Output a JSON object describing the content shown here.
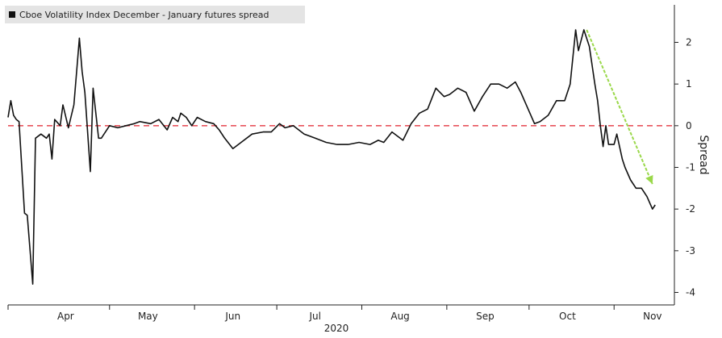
{
  "chart_data": {
    "type": "line",
    "legend": "Cboe Volatility Index December - January futures spread",
    "ylabel": "Spread",
    "xlabel": "2020",
    "ylim": [
      -4.3,
      2.9
    ],
    "yticks": [
      2,
      1,
      0,
      -1,
      -2,
      -3,
      -4
    ],
    "ytick_labels": [
      "2",
      "1",
      "0",
      "-1",
      "-2",
      "-3",
      "-4"
    ],
    "xlim": [
      "2020-03-25",
      "2020-11-23"
    ],
    "month_ticks": [
      "2020-03-25",
      "2020-05-01",
      "2020-06-01",
      "2020-07-01",
      "2020-08-01",
      "2020-09-01",
      "2020-10-01",
      "2020-11-01"
    ],
    "month_labels": [
      {
        "label": "Apr",
        "date": "2020-04-15"
      },
      {
        "label": "May",
        "date": "2020-05-15"
      },
      {
        "label": "Jun",
        "date": "2020-06-15"
      },
      {
        "label": "Jul",
        "date": "2020-07-15"
      },
      {
        "label": "Aug",
        "date": "2020-08-15"
      },
      {
        "label": "Sep",
        "date": "2020-09-15"
      },
      {
        "label": "Oct",
        "date": "2020-10-15"
      },
      {
        "label": "Nov",
        "date": "2020-11-15"
      }
    ],
    "reference_line": {
      "y": 0,
      "color": "#e8555d",
      "style": "dashed"
    },
    "trend_arrow": {
      "color": "#9ad84a",
      "from": {
        "x": "2020-10-22",
        "y": 2.3
      },
      "to": {
        "x": "2020-11-15",
        "y": -1.4
      }
    },
    "grid": false,
    "legend_position": "top-left",
    "series": [
      {
        "name": "Cboe Volatility Index December - January futures spread",
        "color": "#111111",
        "points": [
          [
            "2020-03-25",
            0.2
          ],
          [
            "2020-03-26",
            0.6
          ],
          [
            "2020-03-27",
            0.25
          ],
          [
            "2020-03-28",
            0.15
          ],
          [
            "2020-03-29",
            0.1
          ],
          [
            "2020-03-30",
            -1.0
          ],
          [
            "2020-03-31",
            -2.1
          ],
          [
            "2020-04-01",
            -2.15
          ],
          [
            "2020-04-03",
            -3.8
          ],
          [
            "2020-04-04",
            -0.3
          ],
          [
            "2020-04-06",
            -0.2
          ],
          [
            "2020-04-08",
            -0.3
          ],
          [
            "2020-04-09",
            -0.2
          ],
          [
            "2020-04-10",
            -0.8
          ],
          [
            "2020-04-11",
            0.15
          ],
          [
            "2020-04-13",
            0.0
          ],
          [
            "2020-04-14",
            0.5
          ],
          [
            "2020-04-16",
            -0.05
          ],
          [
            "2020-04-18",
            0.5
          ],
          [
            "2020-04-20",
            2.1
          ],
          [
            "2020-04-21",
            1.3
          ],
          [
            "2020-04-22",
            0.8
          ],
          [
            "2020-04-24",
            -1.1
          ],
          [
            "2020-04-25",
            0.9
          ],
          [
            "2020-04-27",
            -0.3
          ],
          [
            "2020-04-28",
            -0.3
          ],
          [
            "2020-05-01",
            0.0
          ],
          [
            "2020-05-04",
            -0.05
          ],
          [
            "2020-05-07",
            0.0
          ],
          [
            "2020-05-10",
            0.05
          ],
          [
            "2020-05-12",
            0.1
          ],
          [
            "2020-05-16",
            0.05
          ],
          [
            "2020-05-19",
            0.15
          ],
          [
            "2020-05-22",
            -0.1
          ],
          [
            "2020-05-24",
            0.2
          ],
          [
            "2020-05-26",
            0.1
          ],
          [
            "2020-05-27",
            0.3
          ],
          [
            "2020-05-29",
            0.2
          ],
          [
            "2020-05-31",
            0.0
          ],
          [
            "2020-06-02",
            0.2
          ],
          [
            "2020-06-05",
            0.1
          ],
          [
            "2020-06-08",
            0.05
          ],
          [
            "2020-06-10",
            -0.1
          ],
          [
            "2020-06-12",
            -0.3
          ],
          [
            "2020-06-15",
            -0.55
          ],
          [
            "2020-06-18",
            -0.4
          ],
          [
            "2020-06-22",
            -0.2
          ],
          [
            "2020-06-26",
            -0.15
          ],
          [
            "2020-06-29",
            -0.15
          ],
          [
            "2020-07-02",
            0.05
          ],
          [
            "2020-07-04",
            -0.05
          ],
          [
            "2020-07-07",
            0.0
          ],
          [
            "2020-07-11",
            -0.2
          ],
          [
            "2020-07-15",
            -0.3
          ],
          [
            "2020-07-19",
            -0.4
          ],
          [
            "2020-07-23",
            -0.45
          ],
          [
            "2020-07-27",
            -0.45
          ],
          [
            "2020-07-31",
            -0.4
          ],
          [
            "2020-08-04",
            -0.45
          ],
          [
            "2020-08-07",
            -0.35
          ],
          [
            "2020-08-09",
            -0.4
          ],
          [
            "2020-08-12",
            -0.15
          ],
          [
            "2020-08-16",
            -0.35
          ],
          [
            "2020-08-19",
            0.05
          ],
          [
            "2020-08-22",
            0.3
          ],
          [
            "2020-08-25",
            0.4
          ],
          [
            "2020-08-28",
            0.9
          ],
          [
            "2020-08-31",
            0.7
          ],
          [
            "2020-09-02",
            0.75
          ],
          [
            "2020-09-05",
            0.9
          ],
          [
            "2020-09-08",
            0.8
          ],
          [
            "2020-09-11",
            0.35
          ],
          [
            "2020-09-14",
            0.7
          ],
          [
            "2020-09-17",
            1.0
          ],
          [
            "2020-09-20",
            1.0
          ],
          [
            "2020-09-23",
            0.9
          ],
          [
            "2020-09-26",
            1.05
          ],
          [
            "2020-09-28",
            0.8
          ],
          [
            "2020-10-01",
            0.35
          ],
          [
            "2020-10-03",
            0.05
          ],
          [
            "2020-10-05",
            0.1
          ],
          [
            "2020-10-08",
            0.25
          ],
          [
            "2020-10-11",
            0.6
          ],
          [
            "2020-10-14",
            0.6
          ],
          [
            "2020-10-16",
            1.0
          ],
          [
            "2020-10-18",
            2.3
          ],
          [
            "2020-10-19",
            1.8
          ],
          [
            "2020-10-21",
            2.3
          ],
          [
            "2020-10-23",
            1.9
          ],
          [
            "2020-10-25",
            1.0
          ],
          [
            "2020-10-26",
            0.6
          ],
          [
            "2020-10-27",
            0.0
          ],
          [
            "2020-10-28",
            -0.5
          ],
          [
            "2020-10-29",
            0.0
          ],
          [
            "2020-10-30",
            -0.45
          ],
          [
            "2020-11-01",
            -0.45
          ],
          [
            "2020-11-02",
            -0.2
          ],
          [
            "2020-11-04",
            -0.8
          ],
          [
            "2020-11-05",
            -1.0
          ],
          [
            "2020-11-07",
            -1.3
          ],
          [
            "2020-11-09",
            -1.5
          ],
          [
            "2020-11-11",
            -1.5
          ],
          [
            "2020-11-13",
            -1.7
          ],
          [
            "2020-11-15",
            -2.0
          ],
          [
            "2020-11-16",
            -1.9
          ]
        ]
      }
    ]
  }
}
